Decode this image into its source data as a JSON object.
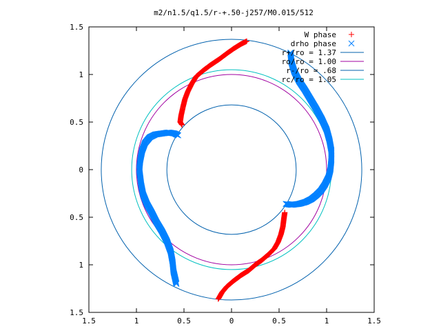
{
  "chart_data": {
    "type": "scatter",
    "title": "m2/n1.5/q1.5/r-+.50-j257/M0.015/512",
    "xlabel": "",
    "ylabel": "",
    "xlim": [
      1.5,
      -1.5
    ],
    "ylim": [
      -1.5,
      1.5
    ],
    "x_tick_values": [
      1.5,
      1,
      0.5,
      0,
      -0.5,
      -1,
      -1.5
    ],
    "x_tick_labels": [
      "1.5",
      "1",
      "0.5",
      "0",
      "0.5",
      "1",
      "1.5"
    ],
    "y_tick_values": [
      1.5,
      1,
      0.5,
      0,
      -0.5,
      -1,
      -1.5
    ],
    "y_tick_labels": [
      "1.5",
      "1",
      "0.5",
      "0",
      "0.5",
      "1",
      "1.5"
    ],
    "grid": false,
    "legend_position": "top-right",
    "series": [
      {
        "name": "W phase",
        "marker": "+",
        "color": "#ff0000",
        "segments": [
          [
            [
              0.16,
              1.35
            ],
            [
              0.1,
              1.32
            ],
            [
              0.02,
              1.27
            ],
            [
              -0.05,
              1.22
            ],
            [
              -0.13,
              1.16
            ],
            [
              -0.22,
              1.1
            ],
            [
              -0.3,
              1.04
            ],
            [
              -0.37,
              0.98
            ],
            [
              -0.42,
              0.9
            ],
            [
              -0.46,
              0.82
            ],
            [
              -0.49,
              0.74
            ],
            [
              -0.51,
              0.66
            ],
            [
              -0.53,
              0.57
            ],
            [
              -0.54,
              0.5
            ],
            [
              -0.52,
              0.47
            ]
          ],
          [
            [
              0.56,
              -0.45
            ],
            [
              0.55,
              -0.52
            ],
            [
              0.54,
              -0.6
            ],
            [
              0.52,
              -0.68
            ],
            [
              0.49,
              -0.76
            ],
            [
              0.45,
              -0.83
            ],
            [
              0.39,
              -0.89
            ],
            [
              0.32,
              -0.95
            ],
            [
              0.25,
              -1.0
            ],
            [
              0.18,
              -1.06
            ],
            [
              0.1,
              -1.11
            ],
            [
              0.02,
              -1.17
            ],
            [
              -0.05,
              -1.23
            ],
            [
              -0.1,
              -1.29
            ],
            [
              -0.14,
              -1.36
            ]
          ]
        ]
      },
      {
        "name": "drho phase",
        "marker": "x",
        "color": "#0080ff",
        "segments": [
          [
            [
              0.62,
              1.23
            ],
            [
              0.63,
              1.13
            ],
            [
              0.66,
              1.03
            ],
            [
              0.71,
              0.93
            ],
            [
              0.77,
              0.84
            ],
            [
              0.83,
              0.74
            ],
            [
              0.89,
              0.64
            ],
            [
              0.95,
              0.53
            ],
            [
              1.0,
              0.42
            ],
            [
              1.03,
              0.31
            ],
            [
              1.05,
              0.2
            ],
            [
              1.05,
              0.1
            ],
            [
              1.04,
              0.0
            ],
            [
              1.02,
              -0.08
            ],
            [
              0.98,
              -0.16
            ],
            [
              0.94,
              -0.22
            ],
            [
              0.89,
              -0.27
            ],
            [
              0.84,
              -0.31
            ],
            [
              0.78,
              -0.34
            ],
            [
              0.71,
              -0.36
            ],
            [
              0.63,
              -0.37
            ],
            [
              0.57,
              -0.36
            ]
          ],
          [
            [
              -0.56,
              0.36
            ],
            [
              -0.6,
              0.38
            ],
            [
              -0.66,
              0.39
            ],
            [
              -0.73,
              0.38
            ],
            [
              -0.8,
              0.37
            ],
            [
              -0.86,
              0.34
            ],
            [
              -0.91,
              0.28
            ],
            [
              -0.94,
              0.2
            ],
            [
              -0.96,
              0.1
            ],
            [
              -0.97,
              0.0
            ],
            [
              -0.96,
              -0.08
            ],
            [
              -0.95,
              -0.16
            ],
            [
              -0.93,
              -0.26
            ],
            [
              -0.89,
              -0.36
            ],
            [
              -0.84,
              -0.45
            ],
            [
              -0.79,
              -0.55
            ],
            [
              -0.73,
              -0.65
            ],
            [
              -0.68,
              -0.75
            ],
            [
              -0.64,
              -0.86
            ],
            [
              -0.62,
              -0.97
            ],
            [
              -0.61,
              -1.07
            ],
            [
              -0.58,
              -1.2
            ]
          ]
        ]
      },
      {
        "name": "r+/ro = 1.37",
        "type": "circle",
        "radius": 1.37,
        "color": "#0060ad"
      },
      {
        "name": "ro/ro = 1.00",
        "type": "circle",
        "radius": 1.0,
        "color": "#a000a0"
      },
      {
        "name": "r-/ro = .68",
        "type": "circle",
        "radius": 0.68,
        "color": "#0060ad"
      },
      {
        "name": "rc/ro = 1.05",
        "type": "circle",
        "radius": 1.05,
        "color": "#00c0c0"
      }
    ]
  }
}
